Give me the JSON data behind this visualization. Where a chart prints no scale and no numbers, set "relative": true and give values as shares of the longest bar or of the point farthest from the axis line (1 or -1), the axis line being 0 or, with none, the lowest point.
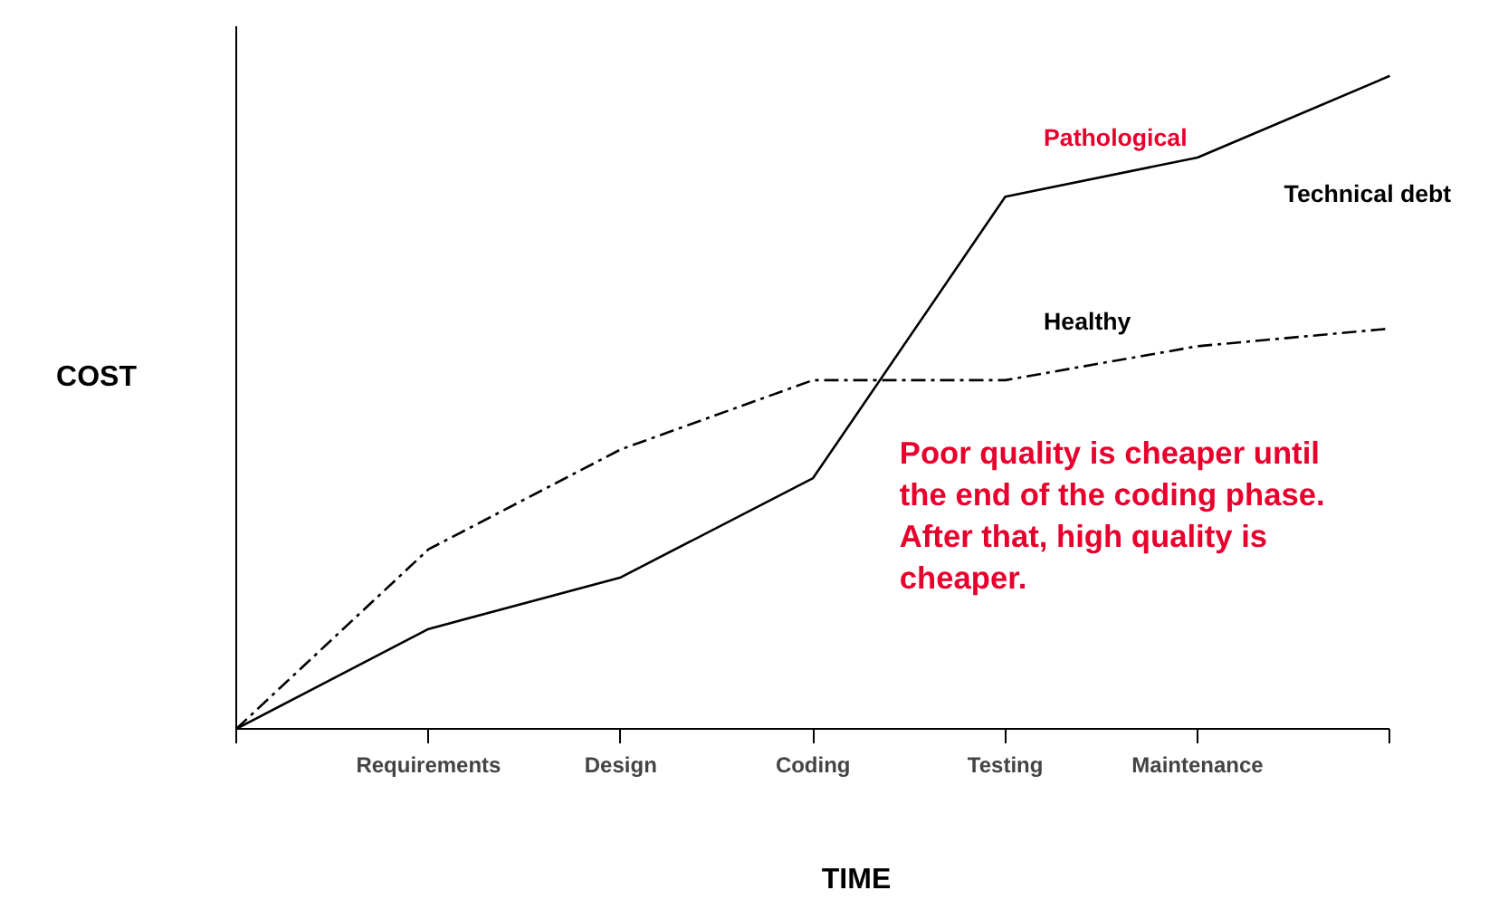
{
  "chart_data": {
    "type": "line",
    "xlabel": "TIME",
    "ylabel": "COST",
    "relative": true,
    "categories": [
      null,
      "Requirements",
      "Design",
      "Coding",
      "Testing",
      "Maintenance",
      null
    ],
    "series": [
      {
        "name": "Pathological",
        "color": "#000000",
        "line_style": "solid",
        "values": [
          0,
          0.153,
          0.232,
          0.384,
          0.815,
          0.875,
          1
        ]
      },
      {
        "name": "Healthy",
        "color": "#000000",
        "line_style": "dashdot",
        "values": [
          0,
          0.275,
          0.428,
          0.534,
          0.534,
          0.586,
          0.613
        ]
      }
    ],
    "annotations": [
      "Technical debt",
      "Poor quality is cheaper until\nthe end of the coding phase.\nAfter that, high quality is\ncheaper."
    ],
    "grid": false,
    "marker": "none"
  }
}
